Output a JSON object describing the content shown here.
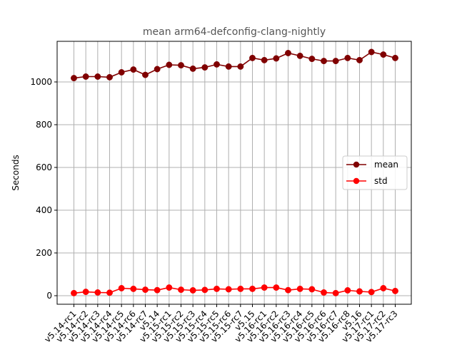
{
  "chart_data": {
    "type": "line",
    "title": "mean arm64-defconfig-clang-nightly",
    "xlabel": "",
    "ylabel": "Seconds",
    "ylim": [
      -40,
      1190
    ],
    "yticks": [
      0,
      200,
      400,
      600,
      800,
      1000
    ],
    "grid": true,
    "legend_position": "center-right",
    "categories": [
      "v5.14-rc1",
      "v5.14-rc2",
      "v5.14-rc3",
      "v5.14-rc4",
      "v5.14-rc5",
      "v5.14-rc6",
      "v5.14-rc7",
      "v5.14",
      "v5.15-rc1",
      "v5.15-rc2",
      "v5.15-rc3",
      "v5.15-rc4",
      "v5.15-rc5",
      "v5.15-rc6",
      "v5.15-rc7",
      "v5.15",
      "v5.16-rc1",
      "v5.16-rc2",
      "v5.16-rc3",
      "v5.16-rc4",
      "v5.16-rc5",
      "v5.16-rc6",
      "v5.16-rc7",
      "v5.16-rc8",
      "v5.16",
      "v5.17-rc1",
      "v5.17-rc2",
      "v5.17-rc3"
    ],
    "series": [
      {
        "name": "mean",
        "color": "#800000",
        "values": [
          1018,
          1025,
          1025,
          1022,
          1045,
          1058,
          1033,
          1060,
          1080,
          1078,
          1062,
          1068,
          1082,
          1072,
          1072,
          1112,
          1102,
          1110,
          1135,
          1122,
          1108,
          1098,
          1098,
          1112,
          1102,
          1140,
          1128,
          1112
        ]
      },
      {
        "name": "std",
        "color": "#ff0000",
        "values": [
          12,
          18,
          15,
          14,
          35,
          32,
          28,
          26,
          38,
          28,
          25,
          27,
          32,
          30,
          32,
          32,
          38,
          38,
          26,
          32,
          30,
          15,
          12,
          25,
          20,
          17,
          35,
          22
        ]
      }
    ]
  }
}
